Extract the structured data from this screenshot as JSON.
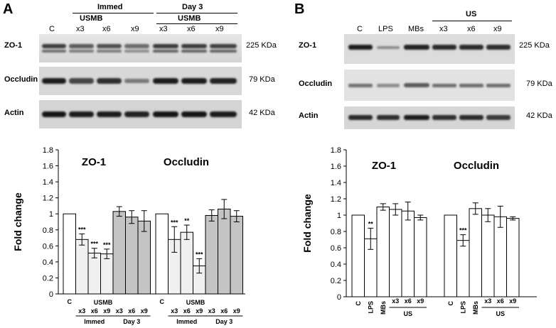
{
  "panelA": {
    "letter": "A",
    "header_immed": "Immed",
    "header_day3": "Day 3",
    "header_usmb1": "USMB",
    "header_usmb2": "USMB",
    "lanes": [
      "C",
      "x3",
      "x6",
      "x9",
      "x3",
      "x6",
      "x9"
    ],
    "blots": [
      {
        "label": "ZO-1",
        "kda": "225 KDa"
      },
      {
        "label": "Occludin",
        "kda": "79 KDa"
      },
      {
        "label": "Actin",
        "kda": "42 KDa"
      }
    ]
  },
  "panelB": {
    "letter": "B",
    "header_us": "US",
    "lanes": [
      "C",
      "LPS",
      "MBs",
      "x3",
      "x6",
      "x9"
    ],
    "blots": [
      {
        "label": "ZO-1",
        "kda": "225 KDa"
      },
      {
        "label": "Occludin",
        "kda": "79 KDa"
      },
      {
        "label": "Actin",
        "kda": "42 KDa"
      }
    ]
  },
  "chart_data": [
    {
      "type": "bar",
      "ylabel": "Fold change",
      "ylim": [
        0,
        1.8
      ],
      "yticks": [
        "0",
        "0.2",
        "0.4",
        "0.6",
        "0.8",
        "1",
        "1.2",
        "1.4",
        "1.6",
        "1.8"
      ],
      "group_label_1": "USMB",
      "group_label_2": "USMB",
      "sub_label_1": "Immed",
      "sub_label_2": "Day 3",
      "sub_label_3": "Immed",
      "sub_label_4": "Day 3",
      "groups": [
        {
          "title": "ZO-1",
          "categories": [
            "C",
            "x3",
            "x6",
            "x9",
            "x3",
            "x6",
            "x9"
          ],
          "values": [
            1.0,
            0.68,
            0.51,
            0.5,
            1.03,
            0.96,
            0.91
          ],
          "errors": [
            0,
            0.07,
            0.06,
            0.06,
            0.06,
            0.08,
            0.13
          ],
          "sig": [
            "",
            "***",
            "***",
            "***",
            "",
            "",
            ""
          ]
        },
        {
          "title": "Occludin",
          "categories": [
            "C",
            "x3",
            "x6",
            "x9",
            "x3",
            "x6",
            "x9"
          ],
          "values": [
            1.0,
            0.68,
            0.77,
            0.35,
            0.98,
            1.06,
            0.97
          ],
          "errors": [
            0,
            0.16,
            0.09,
            0.09,
            0.07,
            0.12,
            0.07
          ],
          "sig": [
            "",
            "***",
            "**",
            "***",
            "",
            "",
            ""
          ]
        }
      ]
    },
    {
      "type": "bar",
      "ylabel": "Fold change",
      "ylim": [
        0,
        1.8
      ],
      "yticks": [
        "0",
        "0.2",
        "0.4",
        "0.6",
        "0.8",
        "1",
        "1.2",
        "1.4",
        "1.6",
        "1.8"
      ],
      "group_label_1": "US",
      "group_label_2": "US",
      "groups": [
        {
          "title": "ZO-1",
          "categories": [
            "C",
            "LPS",
            "MBs",
            "x3",
            "x6",
            "x9"
          ],
          "values": [
            1.0,
            0.71,
            1.1,
            1.07,
            1.05,
            0.97
          ],
          "errors": [
            0,
            0.13,
            0.04,
            0.07,
            0.11,
            0.03
          ],
          "sig": [
            "",
            "**",
            "",
            "",
            "",
            ""
          ]
        },
        {
          "title": "Occludin",
          "categories": [
            "C",
            "LPS",
            "MBs",
            "x3",
            "x6",
            "x9"
          ],
          "values": [
            1.0,
            0.69,
            1.08,
            1.0,
            0.98,
            0.96
          ],
          "errors": [
            0,
            0.07,
            0.07,
            0.08,
            0.13,
            0.02
          ],
          "sig": [
            "",
            "***",
            "",
            "",
            "",
            ""
          ]
        }
      ]
    }
  ]
}
